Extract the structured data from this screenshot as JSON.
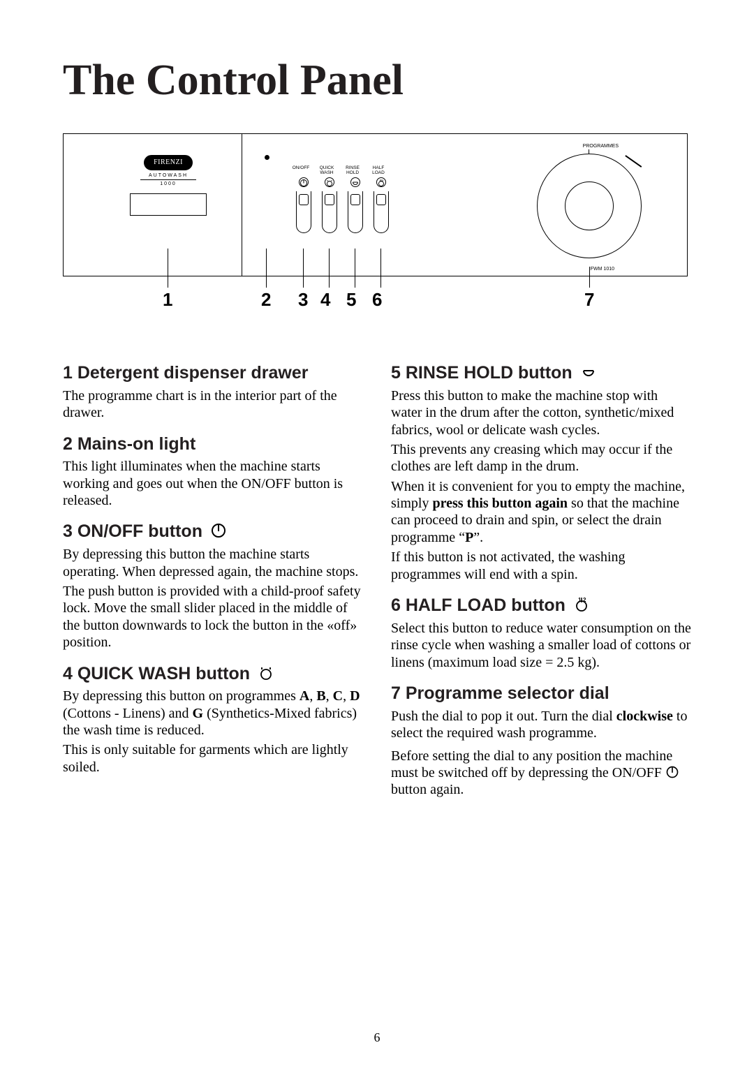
{
  "page_title": "The Control Panel",
  "page_number": "6",
  "diagram": {
    "brand": "FIRENZI",
    "brand_sub_top": "AUTOWASH",
    "brand_sub_bot": "1000",
    "btn_labels": [
      "ON/OFF",
      "QUICK\nWASH",
      "RINSE\nHOLD",
      "HALF\nLOAD"
    ],
    "dial_top": "PROGRAMMES",
    "dial_bot": "FWM 1010",
    "callout_numbers": [
      "1",
      "2",
      "3",
      "4",
      "5",
      "6",
      "7"
    ]
  },
  "left": {
    "s1_h": "1 Detergent dispenser drawer",
    "s1_p": "The programme chart is in the interior part of the drawer.",
    "s2_h": "2 Mains-on light",
    "s2_p": "This light illuminates when the machine starts working and goes out when the ON/OFF button is released.",
    "s3_h": "3 ON/OFF button",
    "s3_p1": "By depressing this button the machine starts operating. When depressed again, the machine stops.",
    "s3_p2": "The push button is provided with a child-proof safety lock. Move the small slider placed in the middle of the button downwards to lock the button in the «off» position.",
    "s4_h": "4 QUICK WASH button",
    "s4_p1a": "By depressing this button on programmes ",
    "s4_A": "A",
    "s4_c1": ", ",
    "s4_B": "B",
    "s4_c2": ", ",
    "s4_C": "C",
    "s4_c3": ", ",
    "s4_D": "D",
    "s4_p1b": " (Cottons - Linens) and ",
    "s4_G": "G",
    "s4_p1c": " (Synthetics-Mixed fabrics) the wash time is reduced.",
    "s4_p2": "This is only suitable for garments which are lightly soiled."
  },
  "right": {
    "s5_h": "5 RINSE HOLD button",
    "s5_p1": "Press this button to make the machine stop with water in the drum after the cotton, synthetic/mixed fabrics, wool or delicate wash cycles.",
    "s5_p2": "This prevents any creasing which may occur if the clothes are left damp in the drum.",
    "s5_p3a": "When it is convenient for you to empty the machine, simply ",
    "s5_p3b": "press this button again",
    "s5_p3c": " so that the machine can proceed to drain and spin, or select the drain programme “",
    "s5_P": "P",
    "s5_p3d": "”.",
    "s5_p4": "If this button is not activated, the washing programmes will end with a spin.",
    "s6_h": "6 HALF LOAD button",
    "s6_p": "Select this button to reduce water consumption on the rinse cycle when washing a smaller load of cottons or linens (maximum load size = 2.5 kg).",
    "s7_h": "7 Programme selector dial",
    "s7_p1a": "Push the dial to pop it out. Turn the dial ",
    "s7_p1b": "clockwise",
    "s7_p1c": " to select the required wash programme.",
    "s7_p2a": "Before setting the dial to any position the machine must be switched off by depressing the ON/OFF ",
    "s7_p2b": " button again."
  },
  "icons_svg": {
    "onoff": "<svg viewBox='0 0 24 24'><circle cx='12' cy='12' r='9' fill='none' stroke='#000' stroke-width='2'/><line x1='12' y1='4' x2='12' y2='13' stroke='#000' stroke-width='2'/></svg>",
    "quickwash": "<svg viewBox='0 0 24 24'><circle cx='12' cy='14' r='7' fill='none' stroke='#000' stroke-width='1.8'/><path d='M6 7 L6 4 M18 7 L18 4' stroke='#000' stroke-width='1.8'/></svg>",
    "rinsehold": "<svg viewBox='0 0 24 24'><path d='M5 10 A7 7 0 0 0 19 10' fill='none' stroke='#000' stroke-width='2'/><line x1='5' y1='10' x2='19' y2='10' stroke='#000' stroke-width='2'/></svg>",
    "halfload": "<svg viewBox='0 0 24 24'><circle cx='12' cy='14' r='7' fill='none' stroke='#000' stroke-width='1.8'/><text x='7' y='8' font-size='8' font-family='Arial' font-weight='bold'>1</text><text x='14' y='8' font-size='8' font-family='Arial' font-weight='bold'>2</text><line x1='12' y1='2' x2='12' y2='9' stroke='#000' stroke-width='1.5'/></svg>"
  }
}
